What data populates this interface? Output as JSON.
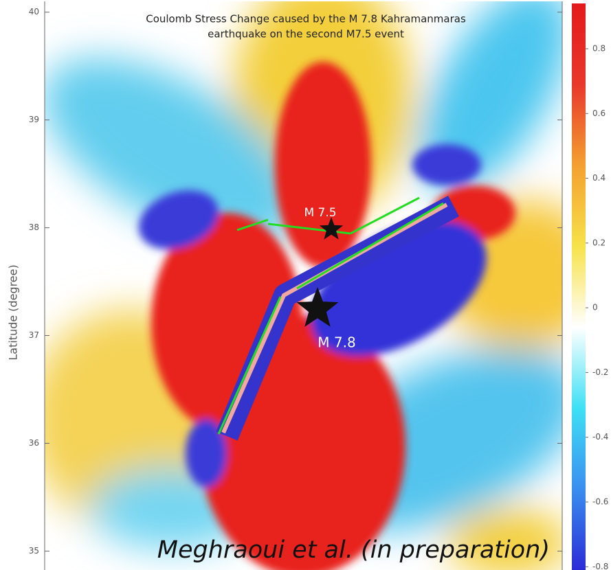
{
  "chart_data": {
    "type": "map",
    "title": [
      "Coulomb Stress Change caused by the M 7.8 Kahramanmaras",
      "earthquake on the second M7.5 event"
    ],
    "y_label": "Latitude (degree)",
    "ylim": [
      34.85,
      40.1
    ],
    "yticks": [
      35,
      36,
      37,
      38,
      39,
      40
    ],
    "colorbar": {
      "clim": [
        -0.81,
        0.94
      ],
      "ticks": [
        -0.8,
        -0.6,
        -0.4,
        -0.2,
        0,
        0.2,
        0.4,
        0.6,
        0.8
      ],
      "colormap": [
        "#2b2bd6",
        "#3a8ef0",
        "#3fe0f5",
        "#ffffff",
        "#f7e24a",
        "#f4a030",
        "#e8382c",
        "#e31a1c"
      ]
    },
    "annotations": [
      "M 7.5",
      "M 7.8"
    ],
    "credit": "Meghraoui et al. (in preparation)"
  }
}
